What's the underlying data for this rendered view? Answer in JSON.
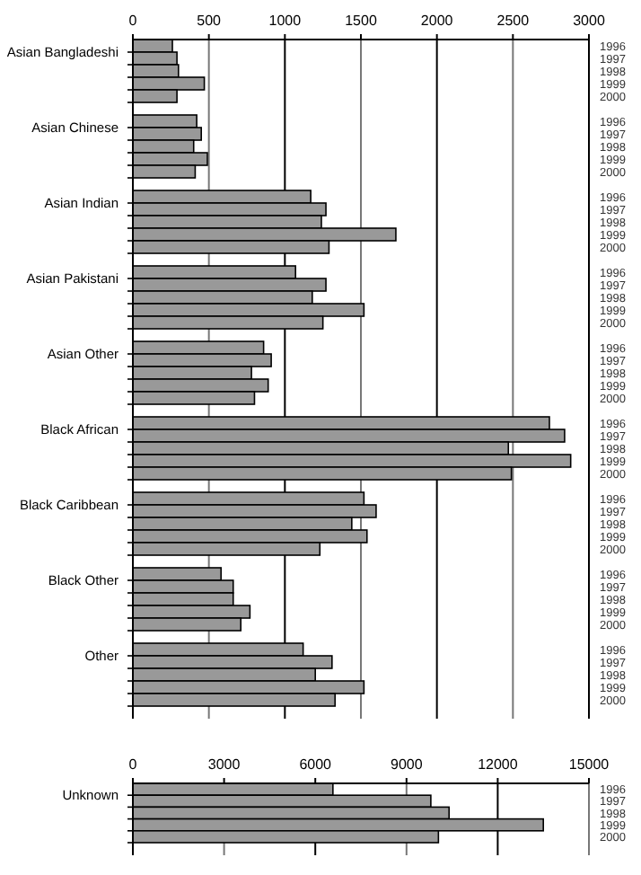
{
  "chart_data": [
    {
      "type": "bar",
      "orientation": "horizontal",
      "categories": [
        "Asian Bangladeshi",
        "Asian Chinese",
        "Asian Indian",
        "Asian Pakistani",
        "Asian Other",
        "Black African",
        "Black Caribbean",
        "Black Other",
        "Other"
      ],
      "xlim": [
        0,
        3000
      ],
      "xticks": [
        0,
        500,
        1000,
        1500,
        2000,
        2500,
        3000
      ],
      "grid": "x",
      "series": [
        {
          "name": "1996",
          "color": "#999999",
          "values": [
            260,
            420,
            1170,
            1070,
            860,
            2740,
            1520,
            580,
            1120
          ]
        },
        {
          "name": "1997",
          "color": "#999999",
          "values": [
            290,
            450,
            1270,
            1270,
            910,
            2840,
            1600,
            660,
            1310
          ]
        },
        {
          "name": "1998",
          "color": "#999999",
          "values": [
            300,
            400,
            1240,
            1180,
            780,
            2470,
            1440,
            660,
            1200
          ]
        },
        {
          "name": "1999",
          "color": "#999999",
          "values": [
            470,
            490,
            1730,
            1520,
            890,
            2880,
            1540,
            770,
            1520
          ]
        },
        {
          "name": "2000",
          "color": "#999999",
          "values": [
            290,
            410,
            1290,
            1250,
            800,
            2490,
            1230,
            710,
            1330
          ]
        }
      ]
    },
    {
      "type": "bar",
      "orientation": "horizontal",
      "categories": [
        "Unknown"
      ],
      "xlim": [
        0,
        15000
      ],
      "xticks": [
        0,
        3000,
        6000,
        9000,
        12000,
        15000
      ],
      "grid": "x",
      "series": [
        {
          "name": "1996",
          "color": "#999999",
          "values": [
            6580
          ]
        },
        {
          "name": "1997",
          "color": "#999999",
          "values": [
            9800
          ]
        },
        {
          "name": "1998",
          "color": "#999999",
          "values": [
            10400
          ]
        },
        {
          "name": "1999",
          "color": "#999999",
          "values": [
            13500
          ]
        },
        {
          "name": "2000",
          "color": "#999999",
          "values": [
            10050
          ]
        }
      ]
    }
  ]
}
